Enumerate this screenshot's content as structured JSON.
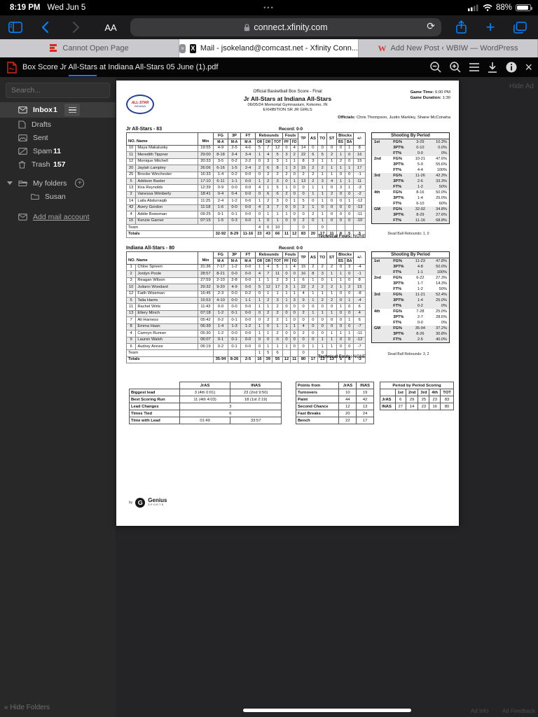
{
  "status_bar": {
    "time": "8:19 PM",
    "date": "Wed Jun 5",
    "dots": "•••",
    "battery": "88%"
  },
  "nav_bar": {
    "reader": "AA",
    "url": "connect.xfinity.com",
    "refresh": "⟳",
    "plus": "+"
  },
  "tab_bar": {
    "tabs": [
      {
        "label": "Cannot Open Page"
      },
      {
        "label": "Mail - jsokeland@comcast.net - Xfinity Conn...",
        "favicon": "X",
        "close": "×"
      },
      {
        "label": "Add New Post ‹ WBIW — WordPress",
        "favicon": "W"
      }
    ]
  },
  "pdf_toolbar": {
    "filename": "Box Score Jr All-Stars at Indiana All-Stars 05 June (1).pdf",
    "close": "×"
  },
  "sidebar": {
    "search_placeholder": "Search...",
    "items": [
      {
        "label": "Inbox",
        "count": "1"
      },
      {
        "label": "Drafts",
        "count": ""
      },
      {
        "label": "Sent",
        "count": ""
      },
      {
        "label": "Spam",
        "count": "11"
      },
      {
        "label": "Trash",
        "count": "157"
      },
      {
        "label": "My folders",
        "count": ""
      },
      {
        "label": "Susan",
        "count": ""
      },
      {
        "label": "Add mail account",
        "count": ""
      }
    ],
    "plus": "+",
    "hide_folders": "« Hide Folders"
  },
  "ad": {
    "hide_ad": "Hide Ad",
    "ad_info": "Ad Info",
    "ad_feedback": "Ad Feedback"
  },
  "boxscore": {
    "header": {
      "line1": "Official Basketball Box Score - Final",
      "line2": "Jr All-Stars at Indiana All-Stars",
      "line3": "06/05/24 Memorial Gymnasium, Kokomo, IN",
      "line4": "EXHIBITION SR JR GIRLS",
      "game_time_label": "Game Time:",
      "game_time": "6:00 PM",
      "duration_label": "Game Duration:",
      "duration": "1:30",
      "officials_label": "Officials:",
      "officials": "Chris Thompson, Justin Markley, Shane McConaha"
    },
    "logo": {
      "top": "ALL-STAR",
      "bottom": "INDIANA"
    },
    "col_headers": {
      "no_name": "NO. Name",
      "min": "Min",
      "fg": "FG",
      "p3": "3P",
      "ft": "FT",
      "ma": "M-A",
      "rebounds": "Rebounds",
      "or": "OR",
      "dr": "DR",
      "tot": "TOT",
      "fouls": "Fouls",
      "pf": "PF",
      "fd": "FD",
      "tp": "TP",
      "as": "AS",
      "to": "TO",
      "st": "ST",
      "blocks": "Blocks",
      "bs": "BS",
      "ba": "BA",
      "pm": "+/-"
    },
    "shooting_title": "Shooting By Period",
    "teams": [
      {
        "title": "Jr All-Stars - 83",
        "record": "Record: 0-0",
        "rows": [
          [
            "10",
            "Maya Makalusky",
            "19:55",
            "4-9",
            "2-5",
            "4-6",
            "5",
            "7",
            "12",
            "0",
            "4",
            "14",
            "0",
            "0",
            "0",
            "0",
            "1",
            "8"
          ],
          [
            "11",
            "Meredith Tippner",
            "29:00",
            "8-18",
            "3-4",
            "3-4",
            "1",
            "4",
            "5",
            "3",
            "2",
            "22",
            "6",
            "5",
            "2",
            "1",
            "0",
            "16"
          ],
          [
            "12",
            "Monique Mitchell",
            "20:33",
            "3-5",
            "0-2",
            "2-2",
            "0",
            "3",
            "3",
            "1",
            "1",
            "8",
            "3",
            "1",
            "1",
            "2",
            "0",
            "15"
          ],
          [
            "20",
            "Jaylah Lampley",
            "26:06",
            "6-16",
            "1-5",
            "2-4",
            "2",
            "6",
            "8",
            "1",
            "3",
            "15",
            "2",
            "2",
            "1",
            "1",
            "1",
            "17"
          ],
          [
            "25",
            "Brooke Winchester",
            "16:33",
            "1-4",
            "0-2",
            "0-0",
            "0",
            "2",
            "2",
            "2",
            "0",
            "2",
            "2",
            "1",
            "1",
            "0",
            "0",
            "-1"
          ],
          [
            "5",
            "Addison Baxter",
            "17:10",
            "6-11",
            "1-1",
            "0-0",
            "1",
            "2",
            "3",
            "0",
            "1",
            "13",
            "2",
            "3",
            "4",
            "1",
            "1",
            "11"
          ],
          [
            "13",
            "Kira Reynolds",
            "12:39",
            "0-9",
            "0-0",
            "0-0",
            "4",
            "1",
            "5",
            "1",
            "0",
            "0",
            "1",
            "1",
            "0",
            "3",
            "1",
            "-3"
          ],
          [
            "2",
            "Vanessa Wimberly",
            "18:41",
            "0-4",
            "0-4",
            "0-0",
            "0",
            "6",
            "6",
            "2",
            "0",
            "0",
            "1",
            "1",
            "2",
            "0",
            "0",
            "-2"
          ],
          [
            "14",
            "Laila Abdurraqib",
            "11:25",
            "2-4",
            "1-2",
            "0-0",
            "1",
            "2",
            "3",
            "0",
            "1",
            "5",
            "0",
            "1",
            "0",
            "0",
            "1",
            "-12"
          ],
          [
            "42",
            "Avery Gordon",
            "11:18",
            "1-6",
            "0-0",
            "0-0",
            "4",
            "3",
            "7",
            "0",
            "0",
            "2",
            "1",
            "0",
            "0",
            "0",
            "0",
            "-13"
          ],
          [
            "4",
            "Addie Bowsman",
            "09:25",
            "0-1",
            "0-1",
            "0-0",
            "0",
            "1",
            "1",
            "1",
            "0",
            "0",
            "2",
            "1",
            "0",
            "0",
            "0",
            "-11"
          ],
          [
            "15",
            "Kenzie Garner",
            "07:15",
            "1-5",
            "0-3",
            "0-0",
            "1",
            "0",
            "1",
            "0",
            "0",
            "2",
            "0",
            "1",
            "0",
            "0",
            "0",
            "-10"
          ],
          [
            {
              "t": "Team",
              "c": 3,
              "cl": "l"
            },
            "",
            "",
            "",
            "4",
            "6",
            "10",
            "",
            "",
            "0",
            "",
            "0",
            "",
            "",
            "",
            ""
          ],
          [
            {
              "t": "Totals",
              "c": 3,
              "cl": "l"
            },
            "32-92",
            "8-29",
            "11-16",
            "23",
            "43",
            "66",
            "11",
            "12",
            "83",
            "20",
            "17",
            "11",
            "8",
            "5",
            "3"
          ]
        ],
        "technical_label": "Technical Fouls:",
        "technical_value": " NONE",
        "dead_ball": "Dead Ball Rebounds: 1, 0",
        "shooting": [
          [
            "1st",
            "FG%",
            "3-29",
            "10.3%"
          ],
          [
            "",
            "3PT%",
            "0-10",
            "0.0%"
          ],
          [
            "",
            "FT%",
            "0-0",
            "0%"
          ],
          [
            "2nd",
            "FG%",
            "10-21",
            "47.6%"
          ],
          [
            "",
            "3PT%",
            "5-9",
            "55.6%"
          ],
          [
            "",
            "FT%",
            "4-4",
            "100%"
          ],
          [
            "3rd",
            "FG%",
            "11-26",
            "42.3%"
          ],
          [
            "",
            "3PT%",
            "2-6",
            "33.3%"
          ],
          [
            "",
            "FT%",
            "1-2",
            "50%"
          ],
          [
            "4th",
            "FG%",
            "8-16",
            "50.0%"
          ],
          [
            "",
            "3PT%",
            "1-4",
            "25.0%"
          ],
          [
            "",
            "FT%",
            "6-10",
            "60%"
          ],
          [
            "GM",
            "FG%",
            "32-92",
            "34.8%"
          ],
          [
            "",
            "3PT%",
            "8-29",
            "27.6%"
          ],
          [
            "",
            "FT%",
            "11-16",
            "68.8%"
          ]
        ]
      },
      {
        "title": "Indiana All-Stars - 80",
        "record": "Record: 0-0",
        "rows": [
          [
            "1",
            "Chloe Spreen",
            "31:36",
            "7-17",
            "1-2",
            "0-0",
            "1",
            "4",
            "5",
            "1",
            "4",
            "15",
            "2",
            "2",
            "2",
            "0",
            "3",
            "-4"
          ],
          [
            "2",
            "Jordyn Poole",
            "28:57",
            "8-21",
            "0-0",
            "0-0",
            "4",
            "7",
            "11",
            "0",
            "0",
            "16",
            "8",
            "3",
            "1",
            "1",
            "0",
            "-1"
          ],
          [
            "3",
            "Reagan Wilson",
            "27:59",
            "2-10",
            "2-8",
            "0-0",
            "1",
            "1",
            "2",
            "3",
            "1",
            "6",
            "1",
            "0",
            "1",
            "1",
            "0",
            "8"
          ],
          [
            "10",
            "Juliann Woodard",
            "29:32",
            "9-20",
            "4-9",
            "0-0",
            "5",
            "12",
            "17",
            "3",
            "1",
            "22",
            "2",
            "2",
            "2",
            "1",
            "2",
            "15"
          ],
          [
            "12",
            "Faith Wiseman",
            "16:45",
            "2-3",
            "0-0",
            "0-2",
            "0",
            "1",
            "1",
            "1",
            "1",
            "4",
            "1",
            "1",
            "1",
            "0",
            "0",
            "-8"
          ],
          [
            "5",
            "Talia Harris",
            "15:53",
            "4-10",
            "0-0",
            "1-1",
            "1",
            "2",
            "3",
            "1",
            "3",
            "9",
            "1",
            "2",
            "2",
            "0",
            "1",
            "-4"
          ],
          [
            "11",
            "Rachel Wirts",
            "11:43",
            "0-0",
            "0-0",
            "0-0",
            "1",
            "1",
            "2",
            "0",
            "0",
            "0",
            "0",
            "0",
            "0",
            "1",
            "0",
            "6"
          ],
          [
            "13",
            "Ellery Minch",
            "07:18",
            "1-2",
            "0-1",
            "0-0",
            "0",
            "2",
            "2",
            "0",
            "0",
            "2",
            "1",
            "1",
            "1",
            "0",
            "0",
            "4"
          ],
          [
            "7",
            "Ali Harness",
            "05:42",
            "0-2",
            "0-1",
            "0-0",
            "0",
            "2",
            "2",
            "1",
            "0",
            "0",
            "0",
            "0",
            "0",
            "0",
            "1",
            "6"
          ],
          [
            "8",
            "Emma Haan",
            "06:39",
            "1-4",
            "1-3",
            "1-2",
            "1",
            "0",
            "1",
            "1",
            "1",
            "4",
            "0",
            "0",
            "0",
            "0",
            "0",
            "-7"
          ],
          [
            "4",
            "Camryn Runner",
            "05:30",
            "1-2",
            "0-0",
            "0-0",
            "1",
            "1",
            "2",
            "0",
            "0",
            "2",
            "0",
            "0",
            "1",
            "1",
            "1",
            "-11"
          ],
          [
            "9",
            "Lauren Walsh",
            "06:07",
            "0-1",
            "0-1",
            "0-0",
            "0",
            "0",
            "0",
            "0",
            "0",
            "0",
            "0",
            "1",
            "1",
            "0",
            "0",
            "-12"
          ],
          [
            "6",
            "Audrey Annee",
            "06:19",
            "0-2",
            "0-1",
            "0-0",
            "0",
            "1",
            "1",
            "1",
            "0",
            "0",
            "1",
            "1",
            "1",
            "0",
            "0",
            "-7"
          ],
          [
            {
              "t": "Team",
              "c": 3,
              "cl": "l"
            },
            "",
            "",
            "",
            "1",
            "5",
            "6",
            "",
            "",
            "0",
            "",
            "0",
            "",
            "",
            "",
            ""
          ],
          [
            {
              "t": "Totals",
              "c": 3,
              "cl": "l"
            },
            "35-94",
            "8-26",
            "2-5",
            "16",
            "39",
            "55",
            "12",
            "11",
            "80",
            "17",
            "13",
            "13",
            "5",
            "8",
            "-3"
          ]
        ],
        "technical_label": "Technical Fouls:",
        "technical_value": " NONE",
        "dead_ball": "Dead Ball Rebounds: 3, 2",
        "shooting": [
          [
            "1st",
            "FG%",
            "11-23",
            "47.8%"
          ],
          [
            "",
            "3PT%",
            "4-8",
            "50.0%"
          ],
          [
            "",
            "FT%",
            "1-1",
            "100%"
          ],
          [
            "2nd",
            "FG%",
            "6-22",
            "27.3%"
          ],
          [
            "",
            "3PT%",
            "1-7",
            "14.3%"
          ],
          [
            "",
            "FT%",
            "1-2",
            "50%"
          ],
          [
            "3rd",
            "FG%",
            "11-21",
            "52.4%"
          ],
          [
            "",
            "3PT%",
            "1-4",
            "25.0%"
          ],
          [
            "",
            "FT%",
            "0-2",
            "0%"
          ],
          [
            "4th",
            "FG%",
            "7-28",
            "25.0%"
          ],
          [
            "",
            "3PT%",
            "2-7",
            "28.6%"
          ],
          [
            "",
            "FT%",
            "0-0",
            "0%"
          ],
          [
            "GM",
            "FG%",
            "35-94",
            "37.2%"
          ],
          [
            "",
            "3PT%",
            "8-26",
            "30.8%"
          ],
          [
            "",
            "FT%",
            "2-5",
            "40.0%"
          ]
        ]
      }
    ],
    "gameflow": {
      "col1": "JrAS",
      "col2": "INAS",
      "rows": [
        [
          "Biggest lead",
          "3 (4th 0:01)",
          "23 (2nd 9:50)"
        ],
        [
          "Best Scoring Run",
          "11 (4th 4:03)",
          "18 (1st 2:19)"
        ],
        [
          "Lead Changes",
          {
            "t": "3",
            "c": 2
          }
        ],
        [
          "Times Tied",
          {
            "t": "6",
            "c": 2
          }
        ],
        [
          "Time with Lead",
          "01:49",
          "33:57"
        ]
      ]
    },
    "points_from": {
      "title": "Points from",
      "col1": "JrAS",
      "col2": "INAS",
      "rows": [
        [
          "Turnovers",
          "10",
          "19"
        ],
        [
          "Paint",
          "44",
          "42"
        ],
        [
          "Second Chance",
          "12",
          "13"
        ],
        [
          "Fast Breaks",
          "20",
          "24"
        ],
        [
          "Bench",
          "22",
          "17"
        ]
      ]
    },
    "period_scoring": {
      "title": "Period by Period Scoring",
      "cols": [
        "1st",
        "2nd",
        "3rd",
        "4th",
        "TOT"
      ],
      "rows": [
        [
          "JrAS",
          "6",
          "29",
          "25",
          "23",
          "83"
        ],
        [
          "INAS",
          "27",
          "14",
          "23",
          "16",
          "80"
        ]
      ]
    },
    "footer": {
      "by": "by",
      "brand1": "Genius",
      "brand2": "SPORTS",
      "g": "G"
    }
  }
}
